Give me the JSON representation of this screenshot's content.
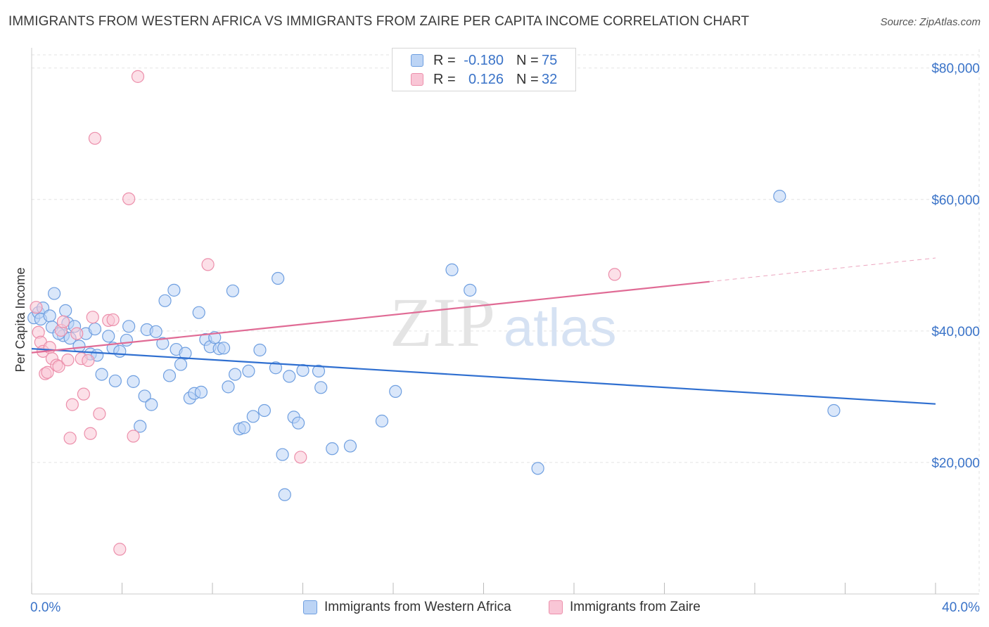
{
  "header": {
    "title": "IMMIGRANTS FROM WESTERN AFRICA VS IMMIGRANTS FROM ZAIRE PER CAPITA INCOME CORRELATION CHART",
    "source": "Source: ZipAtlas.com"
  },
  "watermark": {
    "part1": "ZIP",
    "part2": "atlas"
  },
  "legend_top": {
    "rows": [
      {
        "r_label": "R =",
        "r_value": "-0.180",
        "n_label": "N =",
        "n_value": "75"
      },
      {
        "r_label": "R =",
        "r_value": "0.126",
        "n_label": "N =",
        "n_value": "32"
      }
    ]
  },
  "legend_bottom": {
    "items": [
      {
        "label": "Immigrants from Western Africa"
      },
      {
        "label": "Immigrants from Zaire"
      }
    ]
  },
  "colors": {
    "blue_fill": "#bcd4f5",
    "blue_stroke": "#6f9fe0",
    "blue_line": "#2f6fd0",
    "pink_fill": "#f9c6d6",
    "pink_stroke": "#ec8fab",
    "pink_line": "#e06b95",
    "grid": "#e3e3e3",
    "tick_text": "#3a73c8"
  },
  "chart_data": {
    "type": "scatter",
    "title": "IMMIGRANTS FROM WESTERN AFRICA VS IMMIGRANTS FROM ZAIRE PER CAPITA INCOME CORRELATION CHART",
    "ylabel": "Per Capita Income",
    "xlabel": "",
    "xlim": [
      0,
      40
    ],
    "ylim": [
      0,
      82000
    ],
    "x_tick_labels": [
      "0.0%",
      "40.0%"
    ],
    "y_ticks": [
      20000,
      40000,
      60000,
      80000
    ],
    "y_tick_labels": [
      "$20,000",
      "$40,000",
      "$60,000",
      "$80,000"
    ],
    "grid": true,
    "legend_position": "top-center",
    "series": [
      {
        "name": "Immigrants from Western Africa",
        "color": "#6f9fe0",
        "r": -0.18,
        "n": 75,
        "trend": {
          "x": [
            0,
            40
          ],
          "y": [
            37300,
            28900
          ],
          "dashed_after": null
        },
        "points": [
          [
            0.1,
            42000
          ],
          [
            0.3,
            42800
          ],
          [
            0.5,
            43500
          ],
          [
            0.4,
            41800
          ],
          [
            0.8,
            42300
          ],
          [
            1.0,
            45700
          ],
          [
            0.9,
            40600
          ],
          [
            1.4,
            39300
          ],
          [
            1.5,
            43100
          ],
          [
            1.6,
            41200
          ],
          [
            1.7,
            38900
          ],
          [
            1.9,
            40700
          ],
          [
            2.1,
            37700
          ],
          [
            2.4,
            39600
          ],
          [
            2.6,
            36500
          ],
          [
            2.9,
            36300
          ],
          [
            3.1,
            33400
          ],
          [
            3.4,
            39200
          ],
          [
            3.6,
            37400
          ],
          [
            3.7,
            32400
          ],
          [
            3.9,
            36900
          ],
          [
            4.2,
            38600
          ],
          [
            4.3,
            40700
          ],
          [
            4.5,
            32300
          ],
          [
            4.8,
            25500
          ],
          [
            5.0,
            30100
          ],
          [
            5.1,
            40200
          ],
          [
            5.3,
            28800
          ],
          [
            5.5,
            39900
          ],
          [
            5.8,
            38100
          ],
          [
            5.9,
            44600
          ],
          [
            6.1,
            33200
          ],
          [
            6.3,
            46200
          ],
          [
            6.4,
            37200
          ],
          [
            6.6,
            34900
          ],
          [
            6.8,
            36600
          ],
          [
            7.0,
            29800
          ],
          [
            7.2,
            30500
          ],
          [
            7.5,
            30700
          ],
          [
            7.4,
            42800
          ],
          [
            7.7,
            38700
          ],
          [
            7.9,
            37600
          ],
          [
            8.1,
            39000
          ],
          [
            8.3,
            37300
          ],
          [
            8.5,
            37400
          ],
          [
            8.7,
            31500
          ],
          [
            8.9,
            46100
          ],
          [
            9.0,
            33400
          ],
          [
            9.2,
            25100
          ],
          [
            9.4,
            25300
          ],
          [
            9.6,
            33900
          ],
          [
            9.8,
            27000
          ],
          [
            10.1,
            37100
          ],
          [
            10.3,
            27900
          ],
          [
            10.8,
            34400
          ],
          [
            10.9,
            48000
          ],
          [
            11.1,
            21200
          ],
          [
            11.2,
            15100
          ],
          [
            11.4,
            33100
          ],
          [
            11.6,
            26900
          ],
          [
            11.8,
            26000
          ],
          [
            12.0,
            34000
          ],
          [
            12.7,
            33900
          ],
          [
            12.8,
            31400
          ],
          [
            13.3,
            22100
          ],
          [
            14.1,
            22500
          ],
          [
            15.5,
            26300
          ],
          [
            16.1,
            30800
          ],
          [
            18.6,
            49300
          ],
          [
            19.4,
            46200
          ],
          [
            22.4,
            19100
          ],
          [
            33.1,
            60500
          ],
          [
            35.5,
            27900
          ],
          [
            1.2,
            39600
          ],
          [
            2.8,
            40300
          ]
        ]
      },
      {
        "name": "Immigrants from Zaire",
        "color": "#ec8fab",
        "r": 0.126,
        "n": 32,
        "trend": {
          "x": [
            0,
            30,
            40
          ],
          "y": [
            36700,
            47500,
            51100
          ],
          "dashed_after": 30
        },
        "points": [
          [
            0.2,
            43600
          ],
          [
            0.3,
            39800
          ],
          [
            0.4,
            38300
          ],
          [
            0.5,
            36900
          ],
          [
            0.6,
            33500
          ],
          [
            0.7,
            33700
          ],
          [
            0.8,
            37500
          ],
          [
            0.9,
            35800
          ],
          [
            1.1,
            34800
          ],
          [
            1.2,
            34600
          ],
          [
            1.3,
            40100
          ],
          [
            1.4,
            41400
          ],
          [
            1.6,
            35600
          ],
          [
            1.7,
            23700
          ],
          [
            1.8,
            28800
          ],
          [
            2.0,
            39600
          ],
          [
            2.2,
            35800
          ],
          [
            2.3,
            30400
          ],
          [
            2.6,
            24400
          ],
          [
            2.7,
            42100
          ],
          [
            2.8,
            69300
          ],
          [
            3.0,
            27400
          ],
          [
            3.4,
            41600
          ],
          [
            3.6,
            41700
          ],
          [
            3.9,
            6800
          ],
          [
            4.3,
            60100
          ],
          [
            4.5,
            24000
          ],
          [
            4.7,
            78700
          ],
          [
            7.8,
            50100
          ],
          [
            11.9,
            20800
          ],
          [
            25.8,
            48600
          ],
          [
            2.5,
            35500
          ]
        ]
      }
    ]
  }
}
